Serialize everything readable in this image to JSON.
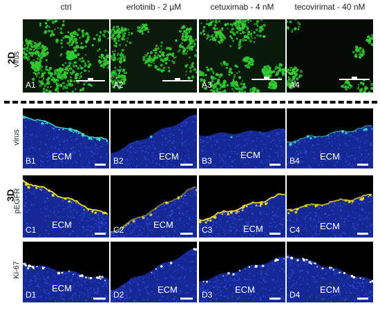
{
  "columns": [
    "ctrl",
    "erlotinib - 2 µM",
    "cetuximab - 4 nM",
    "tecovirimat - 40 nM"
  ],
  "dimension_labels": {
    "two_d": "2D",
    "three_d": "3D"
  },
  "row_labels": {
    "a": "virus",
    "b": "virus",
    "c": "pEGFR",
    "d": "Ki-67"
  },
  "panels": {
    "a": [
      "A1",
      "A2",
      "A3",
      "A4"
    ],
    "b": [
      "B1",
      "B2",
      "B3",
      "B4"
    ],
    "c": [
      "C1",
      "C2",
      "C3",
      "C4"
    ],
    "d": [
      "D1",
      "D2",
      "D3",
      "D4"
    ]
  },
  "ecm_label": "ECM",
  "colors": {
    "virus_gfp": "#33cc33",
    "nuclei_dapi": "#1a2fb0",
    "virus_cyan": "#40e0c8",
    "pegfr_yellow": "#f0e020",
    "ki67_white": "#ffffff"
  }
}
